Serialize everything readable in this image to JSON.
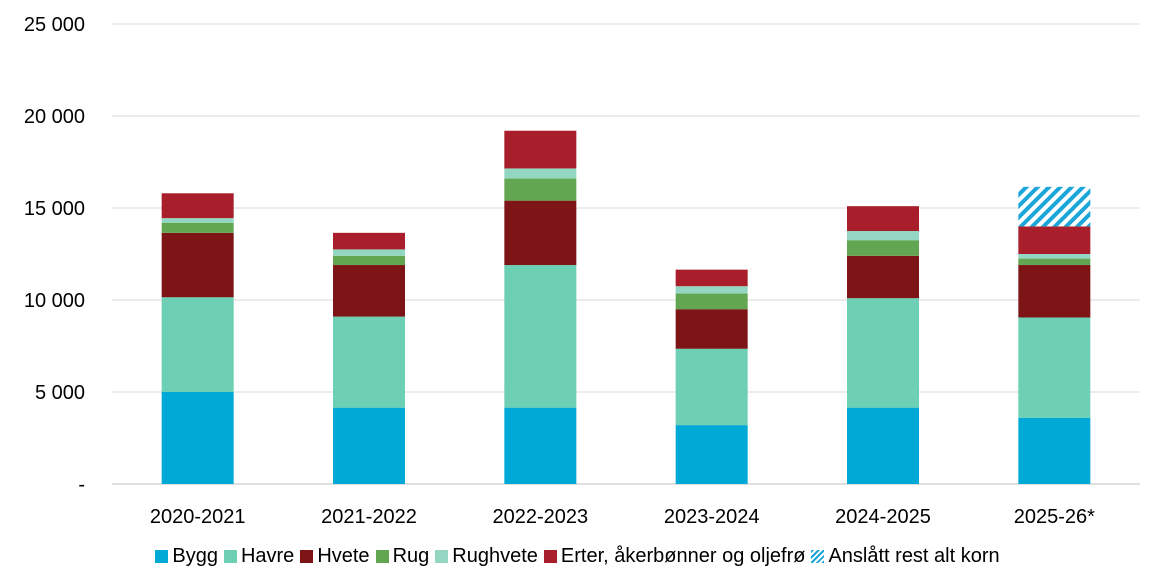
{
  "chart_data": {
    "type": "bar",
    "stacked": true,
    "categories": [
      "2020-2021",
      "2021-2022",
      "2022-2023",
      "2023-2024",
      "2024-2025",
      "2025-26*"
    ],
    "ylim": [
      0,
      25000
    ],
    "yticks": [
      0,
      5000,
      10000,
      15000,
      20000,
      25000
    ],
    "ytick_labels": [
      "-",
      "5 000",
      "10 000",
      "15 000",
      "20 000",
      "25 000"
    ],
    "grid": "horizontal",
    "legend_position": "bottom",
    "series": [
      {
        "name": "Bygg",
        "color": "#00A9D6",
        "pattern": "solid",
        "values": [
          5000,
          4150,
          4150,
          3200,
          4150,
          3600
        ]
      },
      {
        "name": "Havre",
        "color": "#6DCFB3",
        "pattern": "solid",
        "values": [
          5150,
          4950,
          7750,
          4150,
          5950,
          5450
        ]
      },
      {
        "name": "Hvete",
        "color": "#7D1517",
        "pattern": "solid",
        "values": [
          3500,
          2800,
          3500,
          2150,
          2300,
          2850
        ]
      },
      {
        "name": "Rug",
        "color": "#62A651",
        "pattern": "solid",
        "values": [
          550,
          500,
          1200,
          850,
          850,
          350
        ]
      },
      {
        "name": "Rughvete",
        "color": "#93D7C2",
        "pattern": "solid",
        "values": [
          250,
          350,
          550,
          400,
          500,
          250
        ]
      },
      {
        "name": "Erter, åkerbønner og oljefrø",
        "color": "#A81E2A",
        "pattern": "solid",
        "values": [
          1350,
          900,
          2050,
          900,
          1350,
          1500
        ]
      },
      {
        "name": "Anslått rest alt korn",
        "color": "#1BA6D9",
        "pattern": "hatched",
        "values": [
          0,
          0,
          0,
          0,
          0,
          2150
        ]
      }
    ]
  }
}
